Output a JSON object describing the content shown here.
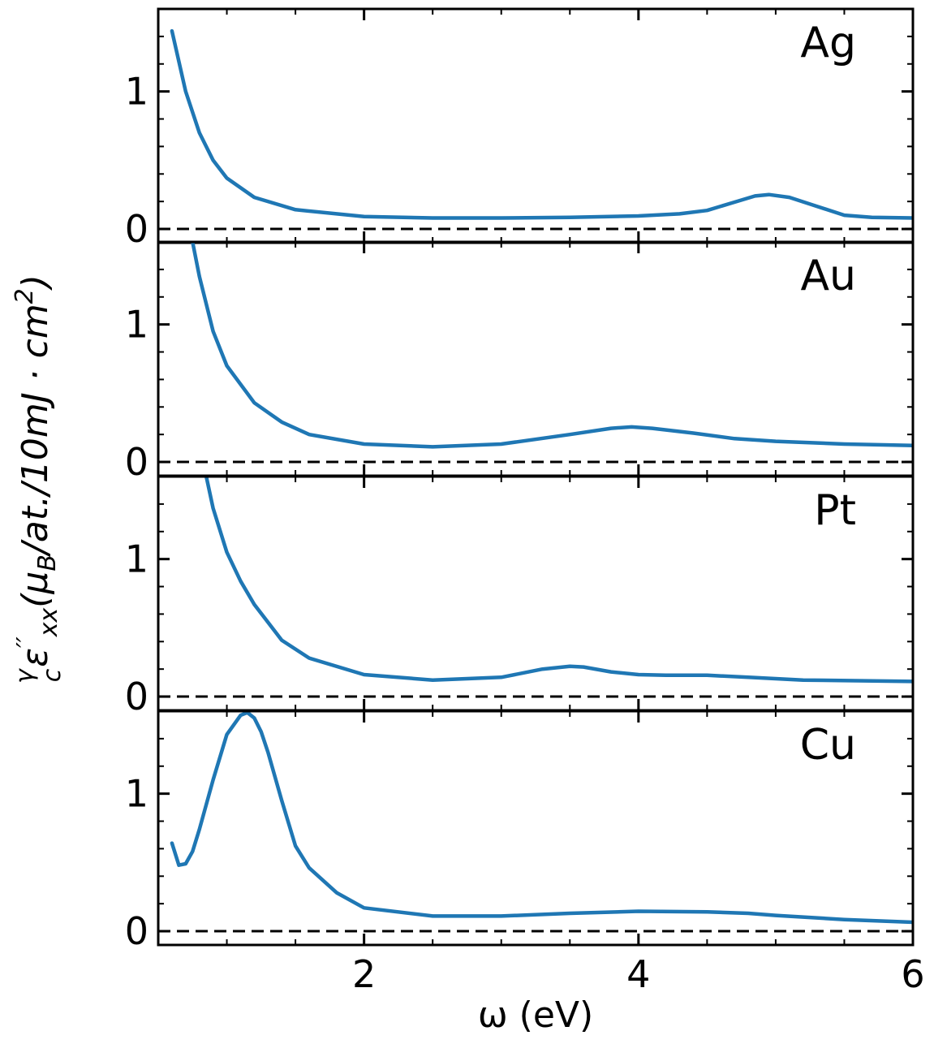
{
  "chart_data": {
    "type": "line",
    "xlabel": "ω (eV)",
    "ylabel": "γ/c ε''xx (μB/at./10mJ·cm²)",
    "ylabel_parts": {
      "frac_num": "γ",
      "frac_den": "c",
      "eps": "ε",
      "sup": "′′",
      "sub": "xx",
      "paren_open": "(",
      "mu": "μ",
      "mu_sub": "B",
      "unit_rest": "/at./10mJ · cm",
      "unit_sup": "2",
      "paren_close": ")"
    },
    "xlim": [
      0.5,
      6.0
    ],
    "ylim": [
      -0.1,
      1.6
    ],
    "xticks": [
      2,
      4,
      6
    ],
    "xtick_labels": [
      "2",
      "4",
      "6"
    ],
    "yticks": [
      0,
      1
    ],
    "ytick_labels": [
      "0",
      "1"
    ],
    "reference_line": {
      "y": 0,
      "style": "dashed"
    },
    "line_color": "#1f77b4",
    "panels": [
      {
        "label": "Ag",
        "series": {
          "name": "Ag",
          "x": [
            0.6,
            0.7,
            0.8,
            0.9,
            1.0,
            1.2,
            1.5,
            2.0,
            2.5,
            3.0,
            3.5,
            4.0,
            4.3,
            4.5,
            4.7,
            4.85,
            4.95,
            5.1,
            5.3,
            5.5,
            5.7,
            6.0
          ],
          "y": [
            1.44,
            1.0,
            0.7,
            0.5,
            0.37,
            0.23,
            0.14,
            0.09,
            0.08,
            0.08,
            0.085,
            0.095,
            0.11,
            0.135,
            0.195,
            0.24,
            0.25,
            0.23,
            0.165,
            0.1,
            0.085,
            0.08
          ]
        }
      },
      {
        "label": "Au",
        "series": {
          "name": "Au",
          "x": [
            0.75,
            0.8,
            0.9,
            1.0,
            1.2,
            1.4,
            1.6,
            2.0,
            2.5,
            3.0,
            3.5,
            3.8,
            3.95,
            4.1,
            4.4,
            4.7,
            5.0,
            5.5,
            6.0
          ],
          "y": [
            1.6,
            1.35,
            0.95,
            0.7,
            0.43,
            0.29,
            0.2,
            0.13,
            0.11,
            0.13,
            0.2,
            0.245,
            0.255,
            0.245,
            0.21,
            0.17,
            0.15,
            0.13,
            0.12
          ]
        }
      },
      {
        "label": "Pt",
        "series": {
          "name": "Pt",
          "x": [
            0.85,
            0.9,
            1.0,
            1.1,
            1.2,
            1.4,
            1.6,
            2.0,
            2.5,
            3.0,
            3.3,
            3.5,
            3.6,
            3.8,
            4.0,
            4.2,
            4.5,
            4.8,
            5.2,
            6.0
          ],
          "y": [
            1.6,
            1.37,
            1.05,
            0.84,
            0.67,
            0.41,
            0.28,
            0.16,
            0.12,
            0.14,
            0.2,
            0.22,
            0.215,
            0.18,
            0.16,
            0.155,
            0.155,
            0.14,
            0.12,
            0.11
          ]
        }
      },
      {
        "label": "Cu",
        "series": {
          "name": "Cu",
          "x": [
            0.6,
            0.65,
            0.7,
            0.75,
            0.8,
            0.9,
            1.0,
            1.1,
            1.15,
            1.2,
            1.25,
            1.3,
            1.4,
            1.5,
            1.6,
            1.8,
            2.0,
            2.5,
            3.0,
            3.5,
            4.0,
            4.5,
            4.8,
            5.0,
            5.5,
            6.0
          ],
          "y": [
            0.64,
            0.48,
            0.49,
            0.58,
            0.74,
            1.1,
            1.43,
            1.57,
            1.59,
            1.55,
            1.45,
            1.3,
            0.95,
            0.62,
            0.46,
            0.28,
            0.17,
            0.11,
            0.11,
            0.13,
            0.145,
            0.14,
            0.13,
            0.115,
            0.085,
            0.065
          ]
        }
      }
    ]
  }
}
